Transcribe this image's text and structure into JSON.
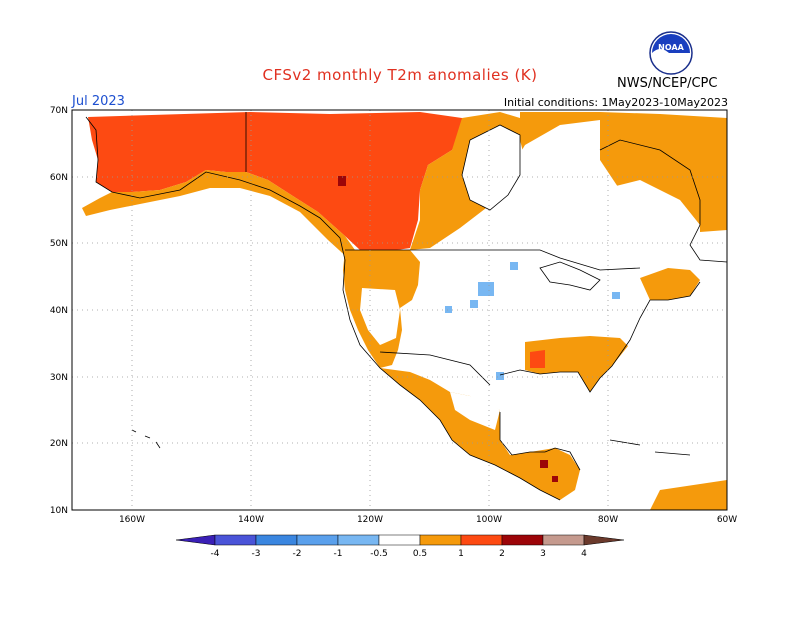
{
  "title": "CFSv2 monthly T2m anomalies (K)",
  "month": "Jul 2023",
  "initial_conditions": "Initial conditions: 1May2023-10May2023",
  "agency": "NWS/NCEP/CPC",
  "logo_text": "NOAA",
  "map": {
    "lat_labels": [
      "70N",
      "60N",
      "50N",
      "40N",
      "30N",
      "20N",
      "10N"
    ],
    "lon_labels": [
      "160W",
      "140W",
      "120W",
      "100W",
      "80W",
      "60W"
    ],
    "lat_range": [
      10,
      70
    ],
    "lon_range": [
      -170,
      -60
    ]
  },
  "legend": {
    "labels": [
      "-4",
      "-3",
      "-2",
      "-1",
      "-0.5",
      "0.5",
      "1",
      "2",
      "3",
      "4"
    ],
    "colors": [
      "#3a1fb6",
      "#4a54d8",
      "#3a86e0",
      "#78b7f2",
      "#ffffff",
      "#f59a0c",
      "#fd4a12",
      "#9c0508",
      "#c59a8e",
      "#6b3a2c"
    ]
  },
  "anomaly_colors": {
    "0.5-1": "#f59a0c",
    "1-2": "#fd4a12",
    "2-3": "#9c0508",
    "-1--0.5": "#78b7f2"
  }
}
